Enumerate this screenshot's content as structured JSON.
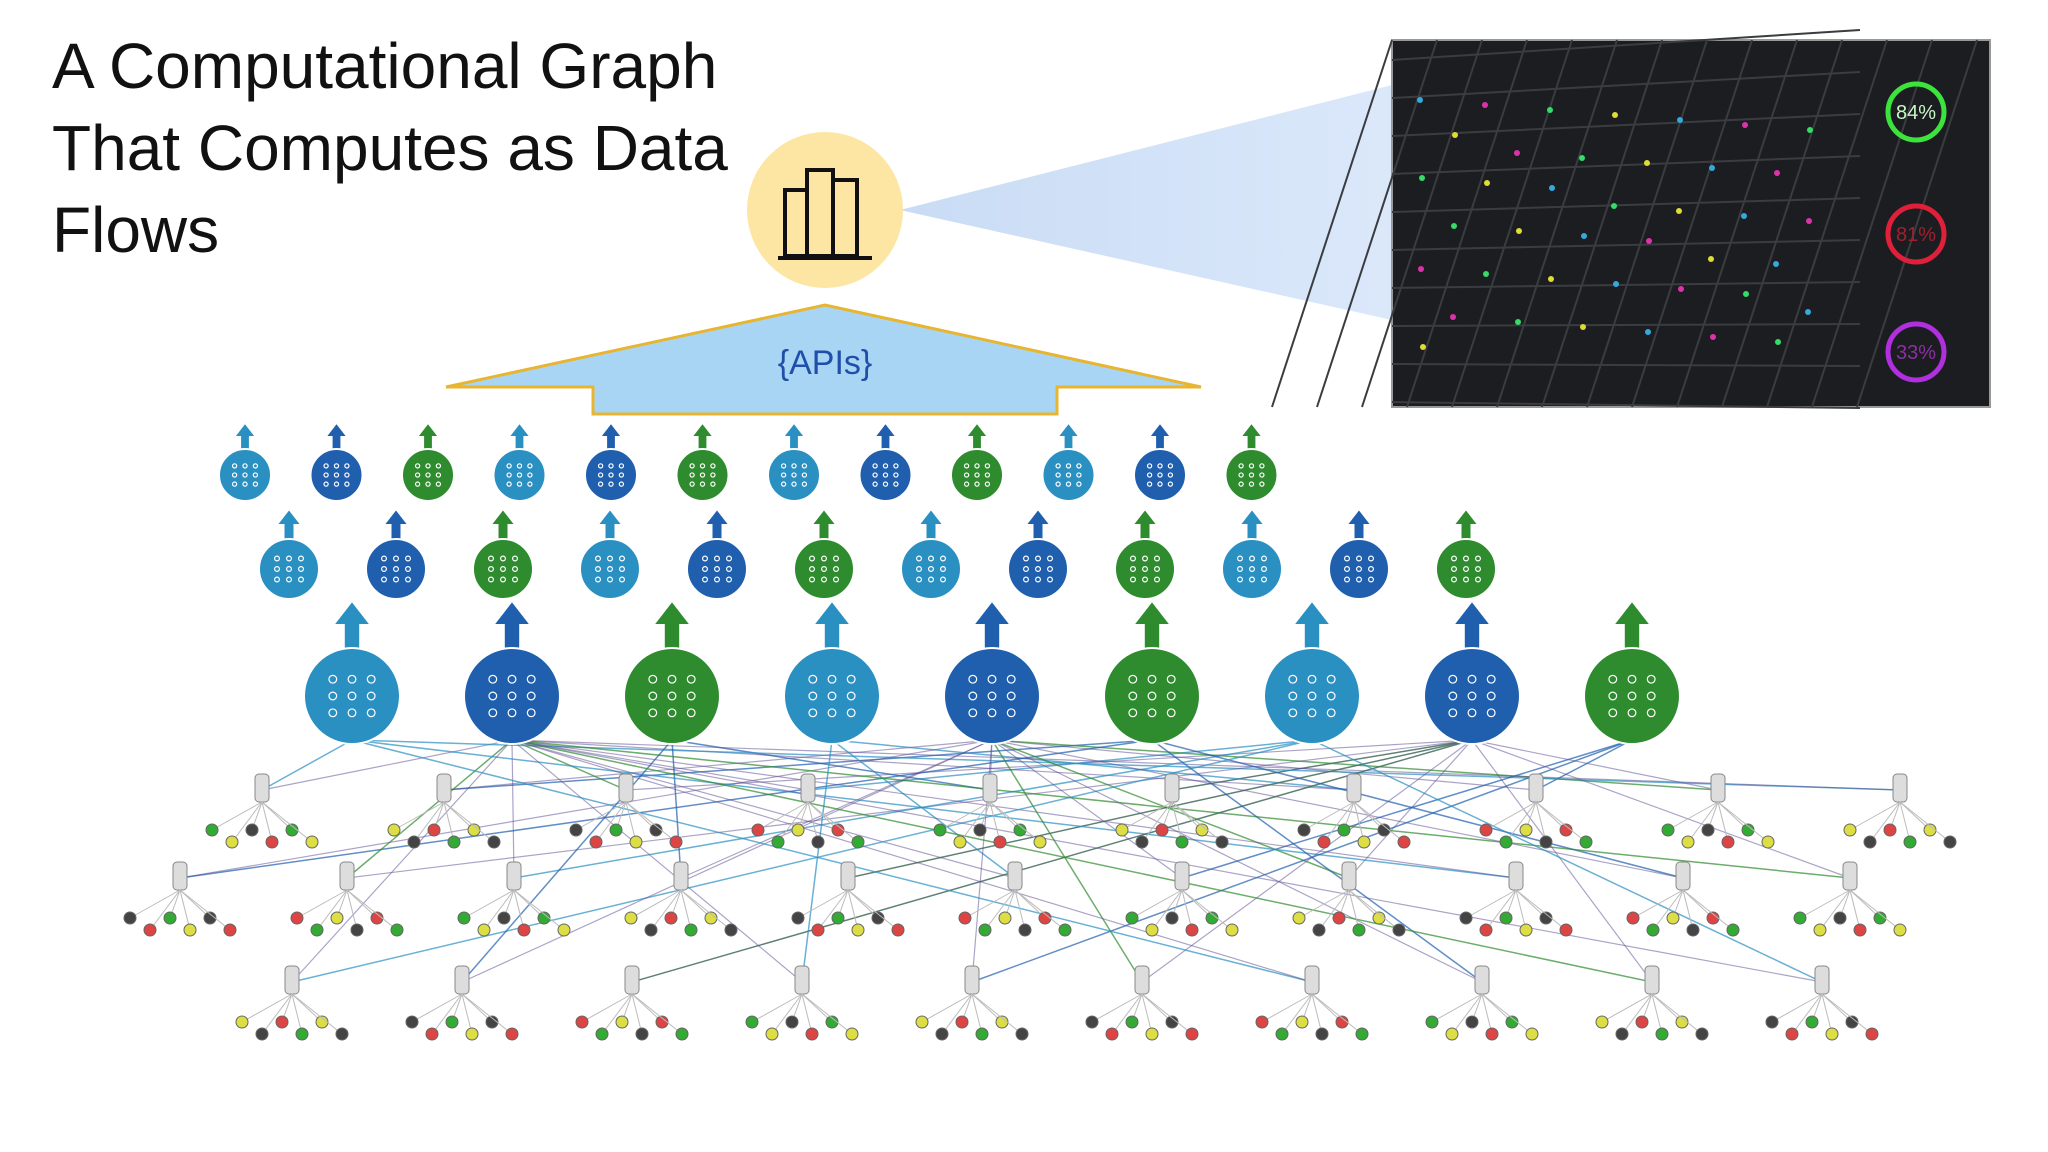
{
  "header": {
    "title_lines": [
      "A Computational Graph",
      "That Computes as Data",
      "Flows"
    ]
  },
  "api": {
    "label": "{APIs}"
  },
  "dashboard": {
    "gauges": [
      "84%",
      "81%",
      "33%"
    ]
  }
}
